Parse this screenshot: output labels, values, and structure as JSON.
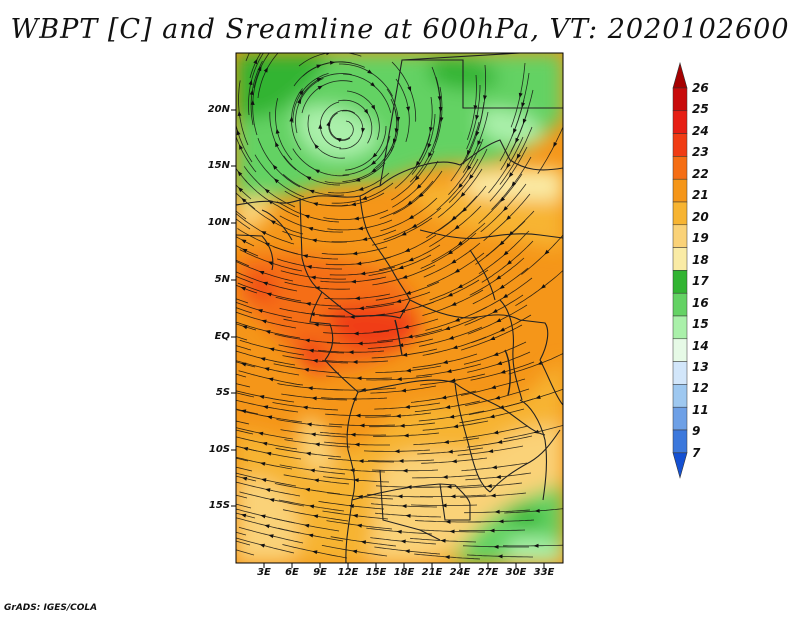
{
  "title": "WBPT [C] and Sreamline at 600hPa, VT: 2020102600",
  "footer": "GrADS: IGES/COLA",
  "map": {
    "lat_labels": [
      "20N",
      "15N",
      "10N",
      "5N",
      "EQ",
      "5S",
      "10S",
      "15S"
    ],
    "lon_labels": [
      "3E",
      "6E",
      "9E",
      "12E",
      "15E",
      "18E",
      "21E",
      "24E",
      "27E",
      "30E",
      "33E"
    ],
    "extent": {
      "lon_min": 0,
      "lon_max": 35,
      "lat_min": -20,
      "lat_max": 25
    }
  },
  "colorbar": {
    "levels": [
      "26",
      "25",
      "24",
      "23",
      "22",
      "21",
      "20",
      "19",
      "18",
      "17",
      "16",
      "15",
      "14",
      "13",
      "12",
      "11",
      "9",
      "7"
    ],
    "colors": [
      "#a50000",
      "#c80a0a",
      "#e61e14",
      "#f03c14",
      "#f56e14",
      "#f59619",
      "#f7b432",
      "#fad278",
      "#faeba5",
      "#32b432",
      "#64d264",
      "#aaf0aa",
      "#e6fae6",
      "#d2e6fa",
      "#9ec8f0",
      "#6ea0e6",
      "#3c78dc",
      "#1450d2"
    ]
  }
}
